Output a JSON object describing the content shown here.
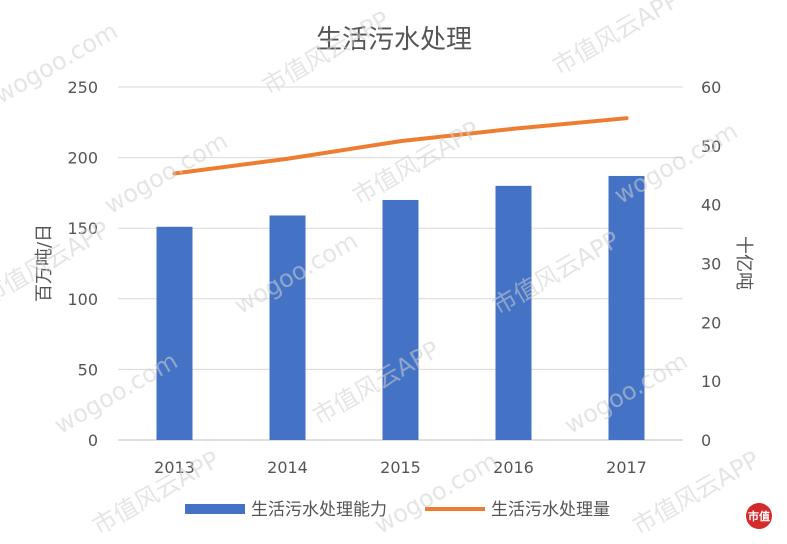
{
  "chart_data": {
    "type": "bar+line",
    "title": "生活污水处理",
    "categories": [
      "2013",
      "2014",
      "2015",
      "2016",
      "2017"
    ],
    "series": [
      {
        "name": "生活污水处理能力",
        "type": "bar",
        "axis": "left",
        "color": "#4472c4",
        "values": [
          151,
          159,
          170,
          180,
          187
        ]
      },
      {
        "name": "生活污水处理量",
        "type": "line",
        "axis": "right",
        "color": "#ed7d31",
        "values": [
          45.3,
          47.8,
          50.8,
          52.9,
          54.7
        ]
      }
    ],
    "ylabel": "百万吨/日",
    "ylabel_right": "十亿吨",
    "ylim": [
      0,
      250
    ],
    "ylim_right": [
      0,
      60
    ],
    "yticks": [
      "0",
      "50",
      "100",
      "150",
      "200",
      "250"
    ],
    "yticks_right": [
      "0",
      "10",
      "20",
      "30",
      "40",
      "50",
      "60"
    ],
    "grid": true,
    "legend": "bottom"
  },
  "watermark": {
    "text_cn": "市值风云APP",
    "text_url": "wogoo.com"
  },
  "logo": {
    "text": "市值"
  }
}
